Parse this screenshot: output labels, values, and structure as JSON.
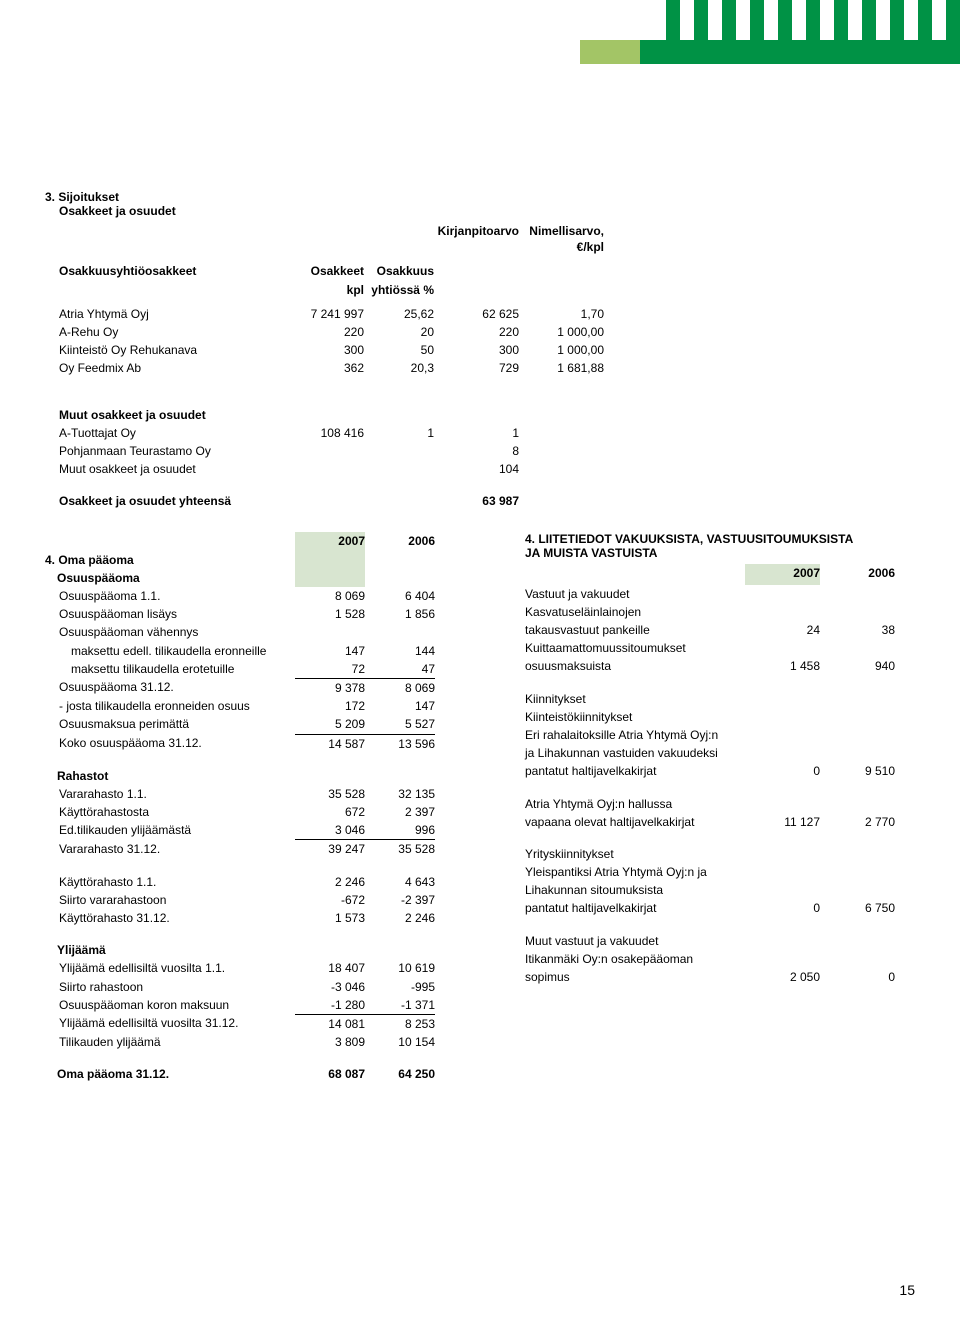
{
  "stripes": [
    "#009245",
    "#ffffff",
    "#009245",
    "#ffffff",
    "#009245",
    "#ffffff",
    "#009245",
    "#ffffff",
    "#009245",
    "#ffffff",
    "#009245",
    "#ffffff",
    "#009245",
    "#ffffff",
    "#009245",
    "#ffffff",
    "#009245",
    "#ffffff",
    "#009245",
    "#ffffff",
    "#009245"
  ],
  "page_number": "15",
  "s3": {
    "title": "3. Sijoitukset",
    "subtitle": "Osakkeet ja osuudet",
    "hdr_kirjanpitoarvo": "Kirjanpitoarvo",
    "hdr_nimellis": "Nimellisarvo, €/kpl",
    "hdr_osakkuus_yhtio": "Osakkuusyhtiöosakkeet",
    "hdr_osakkeet": "Osakkeet",
    "hdr_osakkuus": "Osakkuus",
    "hdr_kpl": "kpl",
    "hdr_yhtiossa": "yhtiössä %",
    "r1": {
      "l": "Atria Yhtymä Oyj",
      "a": "7 241 997",
      "b": "25,62",
      "c": "62 625",
      "d": "1,70"
    },
    "r2": {
      "l": "A-Rehu Oy",
      "a": "220",
      "b": "20",
      "c": "220",
      "d": "1 000,00"
    },
    "r3": {
      "l": "Kiinteistö Oy Rehukanava",
      "a": "300",
      "b": "50",
      "c": "300",
      "d": "1 000,00"
    },
    "r4": {
      "l": "Oy Feedmix Ab",
      "a": "362",
      "b": "20,3",
      "c": "729",
      "d": "1 681,88"
    },
    "muut_title": "Muut osakkeet ja osuudet",
    "m1": {
      "l": "A-Tuottajat Oy",
      "a": "108 416",
      "b": "1",
      "c": "1"
    },
    "m2": {
      "l": "Pohjanmaan Teurastamo Oy",
      "c": "8"
    },
    "m3": {
      "l": "Muut osakkeet ja osuudet",
      "c": "104"
    },
    "tot": {
      "l": "Osakkeet ja osuudet yhteensä",
      "c": "63 987"
    }
  },
  "s4": {
    "year1": "2007",
    "year2": "2006",
    "title": "4. Oma pääoma",
    "sub": "Osuuspääoma",
    "r": [
      {
        "l": "Osuuspääoma 1.1.",
        "a": "8 069",
        "b": "6 404"
      },
      {
        "l": "Osuuspääoman lisäys",
        "a": "1 528",
        "b": "1 856"
      },
      {
        "l": "Osuuspääoman vähennys"
      },
      {
        "l": "maksettu edell. tilikaudella eronneille",
        "a": "147",
        "b": "144",
        "indent": true
      },
      {
        "l": "maksettu tilikaudella erotetuille",
        "a": "72",
        "b": "47",
        "indent": true,
        "ul": true
      },
      {
        "l": "Osuuspääoma 31.12.",
        "a": "9 378",
        "b": "8 069"
      },
      {
        "l": "- josta tilikaudella eronneiden osuus",
        "a": "172",
        "b": "147"
      },
      {
        "l": "Osuusmaksua perimättä",
        "a": "5 209",
        "b": "5 527",
        "ul": true
      },
      {
        "l": "Koko osuuspääoma 31.12.",
        "a": "14 587",
        "b": "13 596"
      }
    ],
    "rahastot_title": "Rahastot",
    "r2": [
      {
        "l": "Vararahasto 1.1.",
        "a": "35 528",
        "b": "32 135"
      },
      {
        "l": "Käyttörahastosta",
        "a": "672",
        "b": "2 397"
      },
      {
        "l": "Ed.tilikauden ylijäämästä",
        "a": "3 046",
        "b": "996",
        "ul": true
      },
      {
        "l": "Vararahasto 31.12.",
        "a": "39 247",
        "b": "35 528"
      }
    ],
    "r3": [
      {
        "l": "Käyttörahasto 1.1.",
        "a": "2 246",
        "b": "4 643"
      },
      {
        "l": "Siirto vararahastoon",
        "a": "-672",
        "b": "-2 397"
      },
      {
        "l": "Käyttörahasto 31.12.",
        "a": "1 573",
        "b": "2 246"
      }
    ],
    "ylijaama_title": "Ylijäämä",
    "r4": [
      {
        "l": "Ylijäämä edellisiltä vuosilta 1.1.",
        "a": "18 407",
        "b": "10 619"
      },
      {
        "l": "Siirto rahastoon",
        "a": "-3 046",
        "b": "-995"
      },
      {
        "l": "Osuuspääoman koron maksuun",
        "a": "-1 280",
        "b": "-1 371",
        "ul": true
      },
      {
        "l": "Ylijäämä edellisiltä vuosilta 31.12.",
        "a": "14 081",
        "b": "8 253"
      },
      {
        "l": "Tilikauden ylijäämä",
        "a": "3 809",
        "b": "10 154"
      }
    ],
    "total": {
      "l": "Oma pääoma 31.12.",
      "a": "68 087",
      "b": "64 250"
    }
  },
  "liite": {
    "title1": "4. LIITETIEDOT VAKUUKSISTA, VASTUUSITOUMUKSISTA",
    "title2": "JA MUISTA VASTUISTA",
    "year1": "2007",
    "year2": "2006",
    "g1": [
      {
        "l": "Vastuut ja vakuudet"
      },
      {
        "l": "Kasvatuseläinlainojen"
      },
      {
        "l": "takausvastuut pankeille",
        "a": "24",
        "b": "38"
      },
      {
        "l": "Kuittaamattomuussitoumukset"
      },
      {
        "l": "osuusmaksuista",
        "a": "1 458",
        "b": "940"
      }
    ],
    "g2": [
      {
        "l": "Kiinnitykset"
      },
      {
        "l": "Kiinteistökiinnitykset"
      },
      {
        "l": "Eri rahalaitoksille Atria Yhtymä Oyj:n"
      },
      {
        "l": "ja Lihakunnan vastuiden vakuudeksi"
      },
      {
        "l": "pantatut haltijavelkakirjat",
        "a": "0",
        "b": "9 510"
      }
    ],
    "g3": [
      {
        "l": "Atria Yhtymä Oyj:n hallussa"
      },
      {
        "l": "vapaana olevat haltijavelkakirjat",
        "a": "11 127",
        "b": "2 770"
      }
    ],
    "g4": [
      {
        "l": "Yrityskiinnitykset"
      },
      {
        "l": "Yleispantiksi Atria Yhtymä Oyj:n ja"
      },
      {
        "l": "Lihakunnan sitoumuksista"
      },
      {
        "l": "pantatut haltijavelkakirjat",
        "a": "0",
        "b": "6 750"
      }
    ],
    "g5": [
      {
        "l": "Muut vastuut ja vakuudet"
      },
      {
        "l": "Itikanmäki Oy:n osakepääoman"
      },
      {
        "l": "sopimus",
        "a": "2 050",
        "b": "0"
      }
    ]
  }
}
